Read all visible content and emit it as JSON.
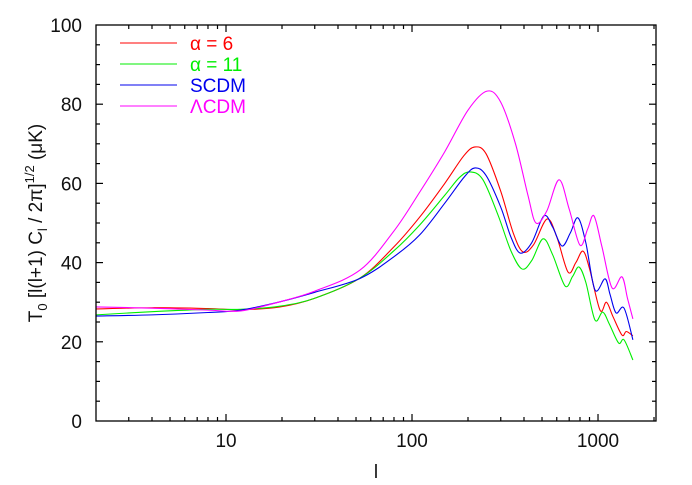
{
  "chart_data": {
    "type": "line",
    "title": "",
    "xlabel": "l",
    "ylabel": "T0 [l(l+1) Cl / 2π]^1/2 (μK)",
    "xscale": "log",
    "xlim": [
      2,
      2050
    ],
    "ylim": [
      0,
      100
    ],
    "grid": false,
    "legend_position": "upper left",
    "x_ticks": [
      {
        "value": 10,
        "label": "10"
      },
      {
        "value": 100,
        "label": "100"
      },
      {
        "value": 1000,
        "label": "1000"
      }
    ],
    "y_ticks": [
      {
        "value": 0,
        "label": "0"
      },
      {
        "value": 20,
        "label": "20"
      },
      {
        "value": 40,
        "label": "40"
      },
      {
        "value": 60,
        "label": "60"
      },
      {
        "value": 80,
        "label": "80"
      },
      {
        "value": 100,
        "label": "100"
      }
    ],
    "series": [
      {
        "name": "α = 6",
        "color": "#ff0000",
        "x": [
          2,
          4,
          8,
          12,
          19.5,
          30,
          52.5,
          80,
          110,
          150,
          190,
          218,
          250,
          300,
          350,
          395,
          450,
          532,
          600,
          690,
          760,
          830,
          900,
          1025,
          1110,
          1200,
          1345,
          1420,
          1540
        ],
        "values": [
          28.3,
          28.6,
          28.4,
          28.1,
          28.8,
          31.0,
          36.1,
          44.0,
          51.5,
          60.0,
          67.0,
          69.2,
          67.5,
          58.0,
          47.5,
          42.7,
          44.5,
          51.0,
          46.5,
          37.6,
          40.0,
          42.9,
          38.5,
          28.0,
          30.0,
          26.5,
          21.7,
          22.6,
          21.5
        ]
      },
      {
        "name": "α = 11",
        "color": "#00ee00",
        "x": [
          2,
          4,
          8,
          12,
          19.5,
          30,
          52.5,
          80,
          110,
          150,
          180,
          205,
          240,
          290,
          340,
          390,
          440,
          506,
          570,
          665,
          730,
          790,
          860,
          963,
          1060,
          1150,
          1290,
          1380,
          1540
        ],
        "values": [
          26.8,
          27.6,
          28.2,
          28.2,
          29.0,
          31.0,
          36.1,
          43.0,
          49.5,
          57.0,
          61.5,
          62.9,
          61.0,
          52.0,
          43.0,
          38.4,
          40.5,
          46.0,
          42.0,
          34.1,
          36.5,
          38.9,
          35.0,
          25.5,
          27.5,
          24.5,
          19.7,
          20.5,
          15.4
        ]
      },
      {
        "name": "SCDM",
        "color": "#0000ee",
        "x": [
          2,
          4,
          8,
          12,
          19.5,
          30,
          52.5,
          80,
          110,
          150,
          190,
          218,
          250,
          300,
          340,
          382,
          440,
          512,
          570,
          640,
          710,
          780,
          860,
          963,
          1091,
          1160,
          1250,
          1380,
          1540
        ],
        "values": [
          26.5,
          26.8,
          27.4,
          28.0,
          30.1,
          32.5,
          36.0,
          41.5,
          47.0,
          55.0,
          61.5,
          63.9,
          62.0,
          54.0,
          46.5,
          42.4,
          45.0,
          51.8,
          49.0,
          44.2,
          47.5,
          51.3,
          45.0,
          33.1,
          35.9,
          32.0,
          27.3,
          28.5,
          20.5
        ]
      },
      {
        "name": "ΛCDM",
        "color": "#ff00ff",
        "x": [
          2,
          4,
          8,
          12,
          19.5,
          30,
          52.5,
          80,
          110,
          150,
          200,
          253,
          300,
          360,
          420,
          464,
          530,
          617,
          700,
          800,
          880,
          951,
          1050,
          1190,
          1345,
          1440,
          1540
        ],
        "values": [
          28.8,
          28.5,
          28.0,
          27.8,
          30.1,
          32.8,
          38.1,
          48.0,
          57.8,
          68.0,
          78.5,
          83.3,
          80.5,
          70.0,
          57.0,
          50.0,
          53.0,
          60.9,
          53.5,
          44.4,
          48.5,
          51.8,
          44.0,
          33.6,
          36.4,
          31.0,
          25.8
        ]
      }
    ]
  },
  "legend": {
    "items": [
      {
        "label": "α = 6",
        "color": "#ff0000"
      },
      {
        "label": "α = 11",
        "color": "#00ee00"
      },
      {
        "label": "SCDM",
        "color": "#0000ee"
      },
      {
        "label": "ΛCDM",
        "color": "#ff00ff"
      }
    ]
  },
  "axes": {
    "xlabel": "l",
    "ylabel_parts": {
      "t": "T",
      "t_sub": "0",
      "mid1": " [l(l+1) C",
      "c_sub": "l",
      "mid2": " / 2π]",
      "sup": "1/2",
      "unit": " (μK)"
    }
  }
}
